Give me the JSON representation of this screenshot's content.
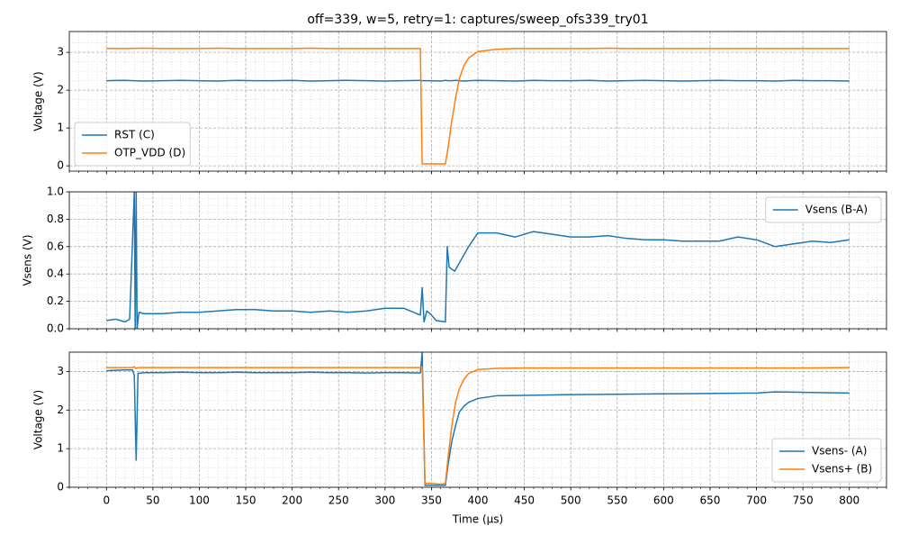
{
  "chart_data": [
    {
      "type": "line",
      "title": "off=339, w=5, retry=1: captures/sweep_ofs339_try01",
      "ylabel": "Voltage (V)",
      "x": [
        0,
        20,
        40,
        60,
        80,
        100,
        120,
        140,
        160,
        180,
        200,
        220,
        240,
        260,
        280,
        300,
        320,
        338,
        340,
        350,
        360,
        365,
        368,
        372,
        376,
        380,
        385,
        390,
        400,
        420,
        440,
        460,
        480,
        500,
        520,
        540,
        560,
        580,
        600,
        620,
        640,
        660,
        680,
        700,
        720,
        740,
        760,
        780,
        800
      ],
      "series": [
        {
          "name": "RST (C)",
          "color": "#1f77b4",
          "values": [
            2.25,
            2.26,
            2.24,
            2.25,
            2.26,
            2.25,
            2.24,
            2.26,
            2.25,
            2.25,
            2.26,
            2.24,
            2.25,
            2.26,
            2.25,
            2.24,
            2.25,
            2.26,
            2.25,
            2.25,
            2.24,
            2.26,
            2.25,
            2.25,
            2.26,
            2.25,
            2.24,
            2.25,
            2.26,
            2.25,
            2.24,
            2.26,
            2.25,
            2.25,
            2.26,
            2.24,
            2.25,
            2.26,
            2.25,
            2.24,
            2.25,
            2.26,
            2.25,
            2.25,
            2.24,
            2.26,
            2.25,
            2.25,
            2.24
          ]
        },
        {
          "name": "OTP_VDD (D)",
          "color": "#ff7f0e",
          "values": [
            3.1,
            3.1,
            3.11,
            3.1,
            3.1,
            3.1,
            3.11,
            3.1,
            3.1,
            3.1,
            3.1,
            3.11,
            3.1,
            3.1,
            3.1,
            3.1,
            3.1,
            3.1,
            0.05,
            0.05,
            0.05,
            0.05,
            0.5,
            1.2,
            1.8,
            2.3,
            2.65,
            2.85,
            3.02,
            3.08,
            3.1,
            3.1,
            3.1,
            3.1,
            3.1,
            3.11,
            3.1,
            3.1,
            3.1,
            3.1,
            3.1,
            3.1,
            3.1,
            3.1,
            3.1,
            3.1,
            3.1,
            3.1,
            3.1
          ]
        }
      ],
      "xlim": [
        -40,
        840
      ],
      "xticks": [
        0,
        50,
        100,
        150,
        200,
        250,
        300,
        350,
        400,
        450,
        500,
        550,
        600,
        650,
        700,
        750,
        800
      ],
      "ylim": [
        -0.14,
        3.55
      ],
      "yticks": [
        0,
        1,
        2,
        3
      ],
      "grid": true,
      "x_minor_step": 10,
      "y_minor_step": 0.25,
      "legend": "lower left"
    },
    {
      "type": "line",
      "ylabel": "Vsens (V)",
      "x": [
        0,
        10,
        20,
        25,
        30,
        31,
        32,
        33,
        35,
        40,
        60,
        80,
        100,
        120,
        140,
        160,
        180,
        200,
        220,
        240,
        260,
        280,
        300,
        320,
        338,
        340,
        342,
        345,
        350,
        355,
        365,
        367,
        369,
        375,
        380,
        390,
        400,
        420,
        440,
        460,
        480,
        500,
        520,
        540,
        560,
        580,
        600,
        620,
        640,
        660,
        680,
        700,
        720,
        740,
        760,
        780,
        800
      ],
      "series": [
        {
          "name": "Vsens (B-A)",
          "color": "#1f77b4",
          "values": [
            0.06,
            0.07,
            0.05,
            0.07,
            1.0,
            0.0,
            1.0,
            0.0,
            0.12,
            0.11,
            0.11,
            0.12,
            0.12,
            0.13,
            0.14,
            0.14,
            0.13,
            0.13,
            0.12,
            0.13,
            0.12,
            0.13,
            0.15,
            0.15,
            0.1,
            0.3,
            0.05,
            0.13,
            0.1,
            0.06,
            0.05,
            0.6,
            0.45,
            0.42,
            0.48,
            0.6,
            0.7,
            0.7,
            0.67,
            0.71,
            0.69,
            0.67,
            0.67,
            0.68,
            0.66,
            0.65,
            0.65,
            0.64,
            0.64,
            0.64,
            0.67,
            0.65,
            0.6,
            0.62,
            0.64,
            0.63,
            0.65
          ]
        }
      ],
      "xlim": [
        -40,
        840
      ],
      "xticks": [
        0,
        50,
        100,
        150,
        200,
        250,
        300,
        350,
        400,
        450,
        500,
        550,
        600,
        650,
        700,
        750,
        800
      ],
      "ylim": [
        0,
        1
      ],
      "yticks": [
        {
          "value": 0,
          "label": "0.0"
        },
        0.2,
        0.4,
        0.6,
        0.8,
        {
          "value": 1,
          "label": "1.0"
        }
      ],
      "grid": true,
      "x_minor_step": 10,
      "y_minor_step": 0.05,
      "legend": "upper right"
    },
    {
      "type": "line",
      "ylabel": "Voltage (V)",
      "xlabel": "Time (µs)",
      "x": [
        0,
        10,
        20,
        28,
        30,
        32,
        34,
        40,
        60,
        80,
        100,
        120,
        140,
        160,
        180,
        200,
        220,
        240,
        260,
        280,
        300,
        320,
        338,
        340,
        343,
        350,
        360,
        365,
        368,
        372,
        376,
        380,
        385,
        390,
        400,
        420,
        450,
        500,
        550,
        600,
        650,
        700,
        720,
        750,
        800
      ],
      "series": [
        {
          "name": "Vsens- (A)",
          "color": "#1f77b4",
          "values": [
            3.02,
            3.03,
            3.04,
            3.04,
            2.9,
            0.7,
            2.95,
            2.97,
            2.97,
            2.98,
            2.97,
            2.97,
            2.98,
            2.97,
            2.97,
            2.97,
            2.98,
            2.97,
            2.97,
            2.96,
            2.97,
            2.97,
            2.96,
            3.5,
            0.05,
            0.05,
            0.05,
            0.05,
            0.6,
            1.2,
            1.6,
            1.95,
            2.1,
            2.2,
            2.3,
            2.37,
            2.38,
            2.4,
            2.41,
            2.42,
            2.43,
            2.44,
            2.47,
            2.46,
            2.44
          ]
        },
        {
          "name": "Vsens+ (B)",
          "color": "#ff7f0e",
          "values": [
            3.1,
            3.1,
            3.1,
            3.1,
            3.12,
            3.08,
            3.1,
            3.1,
            3.1,
            3.1,
            3.1,
            3.1,
            3.1,
            3.1,
            3.1,
            3.1,
            3.1,
            3.1,
            3.1,
            3.1,
            3.1,
            3.1,
            3.1,
            3.12,
            0.1,
            0.1,
            0.08,
            0.1,
            0.8,
            1.6,
            2.2,
            2.55,
            2.8,
            2.95,
            3.05,
            3.08,
            3.09,
            3.09,
            3.09,
            3.09,
            3.09,
            3.09,
            3.09,
            3.09,
            3.1
          ]
        }
      ],
      "xlim": [
        -40,
        840
      ],
      "xticks": [
        0,
        50,
        100,
        150,
        200,
        250,
        300,
        350,
        400,
        450,
        500,
        550,
        600,
        650,
        700,
        750,
        800
      ],
      "ylim": [
        0,
        3.5
      ],
      "yticks": [
        0,
        1,
        2,
        3
      ],
      "grid": true,
      "x_minor_step": 10,
      "y_minor_step": 0.25,
      "legend": "lower right"
    }
  ]
}
